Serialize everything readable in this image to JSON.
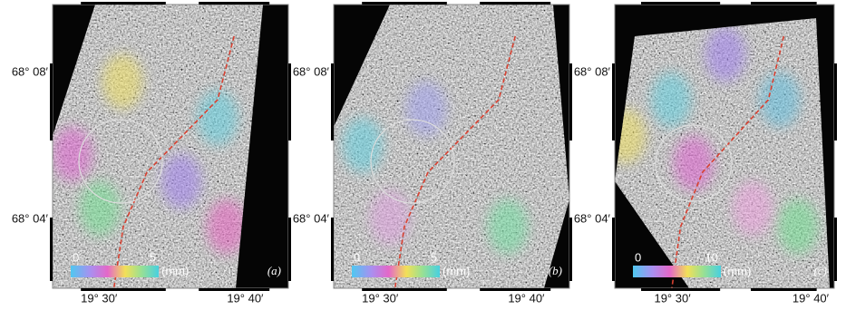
{
  "panels": [
    {
      "label": "(a)",
      "lat_labels": [
        "68° 08′",
        "68° 04′"
      ],
      "lon_labels": [
        "19° 30′",
        "19° 40′"
      ],
      "colorbar": {
        "min": 0,
        "max": 5,
        "unit": "(mm)"
      }
    },
    {
      "label": "(b)",
      "lat_labels": [
        "68° 08′",
        "68° 04′"
      ],
      "lon_labels": [
        "19° 30′",
        "19° 40′"
      ],
      "colorbar": {
        "min": 0,
        "max": 5,
        "unit": "(mm)"
      }
    },
    {
      "label": "(c)",
      "lat_labels": [
        "68° 08′",
        "68° 04′"
      ],
      "lon_labels": [
        "19° 30′",
        "19° 40′"
      ],
      "colorbar": {
        "min": 0,
        "max": 10,
        "unit": "(mm)"
      }
    }
  ]
}
